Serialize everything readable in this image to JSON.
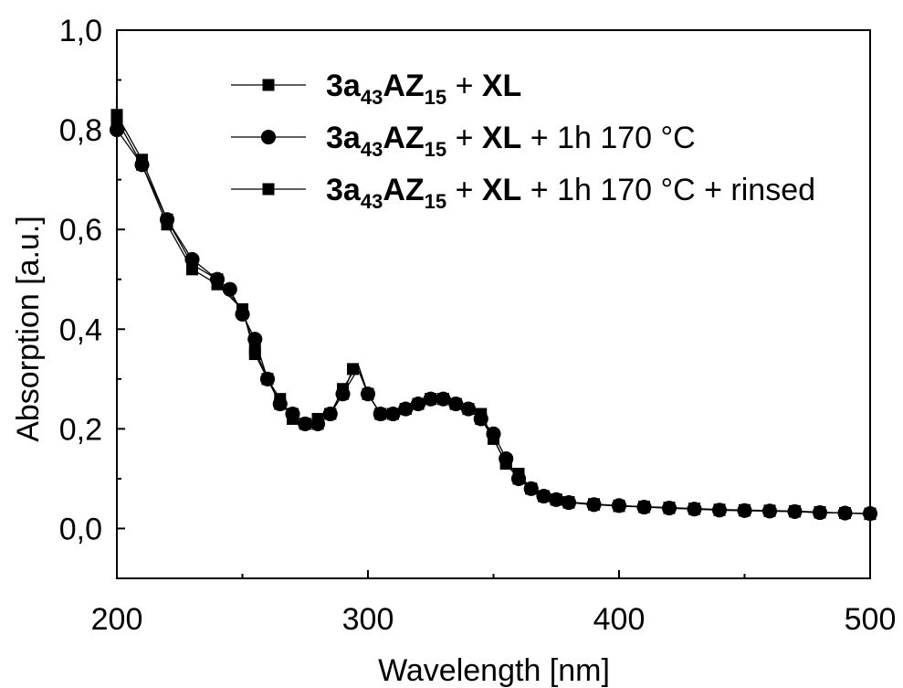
{
  "chart_data": {
    "type": "line",
    "xlabel": "Wavelength [nm]",
    "ylabel": "Absorption [a.u.]",
    "xlim": [
      200,
      500
    ],
    "ylim": [
      -0.1,
      1.0
    ],
    "x_ticks": [
      "200",
      "300",
      "400",
      "500"
    ],
    "y_ticks": [
      "0,0",
      "0,2",
      "0,4",
      "0,6",
      "0,8",
      "1,0"
    ],
    "grid": false,
    "legend_position": "top-right",
    "legend": [
      {
        "marker": "square",
        "parts": [
          {
            "t": "3a",
            "w": "bold"
          },
          {
            "t": "43",
            "w": "bold",
            "sub": true
          },
          {
            "t": "AZ",
            "w": "bold"
          },
          {
            "t": "15",
            "w": "bold",
            "sub": true
          },
          {
            "t": " + "
          },
          {
            "t": "XL",
            "w": "bold"
          }
        ]
      },
      {
        "marker": "circle",
        "parts": [
          {
            "t": "3a",
            "w": "bold"
          },
          {
            "t": "43",
            "w": "bold",
            "sub": true
          },
          {
            "t": "AZ",
            "w": "bold"
          },
          {
            "t": "15",
            "w": "bold",
            "sub": true
          },
          {
            "t": " + "
          },
          {
            "t": "XL",
            "w": "bold"
          },
          {
            "t": " + 1h 170 °C"
          }
        ]
      },
      {
        "marker": "square",
        "parts": [
          {
            "t": "3a",
            "w": "bold"
          },
          {
            "t": "43",
            "w": "bold",
            "sub": true
          },
          {
            "t": "AZ",
            "w": "bold"
          },
          {
            "t": "15",
            "w": "bold",
            "sub": true
          },
          {
            "t": " + "
          },
          {
            "t": "XL",
            "w": "bold"
          },
          {
            "t": " + 1h 170 °C + rinsed"
          }
        ]
      }
    ],
    "series": [
      {
        "marker": "square",
        "points": [
          [
            200,
            0.82
          ],
          [
            210,
            0.73
          ],
          [
            220,
            0.61
          ],
          [
            230,
            0.52
          ],
          [
            240,
            0.49
          ],
          [
            250,
            0.44
          ],
          [
            255,
            0.35
          ],
          [
            260,
            0.3
          ],
          [
            265,
            0.26
          ],
          [
            270,
            0.22
          ],
          [
            275,
            0.21
          ],
          [
            280,
            0.21
          ],
          [
            285,
            0.23
          ],
          [
            290,
            0.27
          ],
          [
            294,
            0.32
          ],
          [
            296,
            0.33
          ],
          [
            300,
            0.27
          ],
          [
            305,
            0.23
          ],
          [
            310,
            0.23
          ],
          [
            315,
            0.24
          ],
          [
            320,
            0.25
          ],
          [
            325,
            0.26
          ],
          [
            330,
            0.26
          ],
          [
            335,
            0.25
          ],
          [
            340,
            0.24
          ],
          [
            345,
            0.22
          ],
          [
            350,
            0.18
          ],
          [
            355,
            0.13
          ],
          [
            360,
            0.1
          ],
          [
            365,
            0.08
          ],
          [
            370,
            0.065
          ],
          [
            375,
            0.058
          ],
          [
            380,
            0.052
          ],
          [
            390,
            0.048
          ],
          [
            400,
            0.045
          ],
          [
            410,
            0.043
          ],
          [
            420,
            0.041
          ],
          [
            430,
            0.039
          ],
          [
            440,
            0.037
          ],
          [
            450,
            0.036
          ],
          [
            460,
            0.035
          ],
          [
            470,
            0.034
          ],
          [
            480,
            0.032
          ],
          [
            490,
            0.031
          ],
          [
            500,
            0.029
          ]
        ]
      },
      {
        "marker": "circle",
        "points": [
          [
            200,
            0.8
          ],
          [
            210,
            0.73
          ],
          [
            220,
            0.62
          ],
          [
            230,
            0.54
          ],
          [
            240,
            0.5
          ],
          [
            245,
            0.48
          ],
          [
            250,
            0.43
          ],
          [
            255,
            0.38
          ],
          [
            260,
            0.3
          ],
          [
            265,
            0.25
          ],
          [
            270,
            0.23
          ],
          [
            275,
            0.21
          ],
          [
            280,
            0.21
          ],
          [
            285,
            0.23
          ],
          [
            290,
            0.27
          ],
          [
            296,
            0.32
          ],
          [
            300,
            0.27
          ],
          [
            305,
            0.23
          ],
          [
            310,
            0.23
          ],
          [
            315,
            0.24
          ],
          [
            320,
            0.25
          ],
          [
            325,
            0.26
          ],
          [
            330,
            0.26
          ],
          [
            335,
            0.25
          ],
          [
            340,
            0.24
          ],
          [
            345,
            0.22
          ],
          [
            350,
            0.19
          ],
          [
            355,
            0.14
          ],
          [
            360,
            0.1
          ],
          [
            365,
            0.08
          ],
          [
            370,
            0.065
          ],
          [
            375,
            0.058
          ],
          [
            380,
            0.052
          ],
          [
            390,
            0.048
          ],
          [
            400,
            0.046
          ],
          [
            410,
            0.043
          ],
          [
            420,
            0.041
          ],
          [
            430,
            0.039
          ],
          [
            440,
            0.037
          ],
          [
            450,
            0.036
          ],
          [
            460,
            0.035
          ],
          [
            470,
            0.034
          ],
          [
            480,
            0.032
          ],
          [
            490,
            0.031
          ],
          [
            500,
            0.03
          ]
        ]
      },
      {
        "marker": "square",
        "points": [
          [
            200,
            0.83
          ],
          [
            210,
            0.74
          ],
          [
            220,
            0.62
          ],
          [
            230,
            0.53
          ],
          [
            240,
            0.5
          ],
          [
            250,
            0.44
          ],
          [
            255,
            0.36
          ],
          [
            260,
            0.3
          ],
          [
            265,
            0.25
          ],
          [
            270,
            0.23
          ],
          [
            275,
            0.21
          ],
          [
            280,
            0.22
          ],
          [
            285,
            0.23
          ],
          [
            290,
            0.28
          ],
          [
            296,
            0.33
          ],
          [
            300,
            0.27
          ],
          [
            305,
            0.23
          ],
          [
            310,
            0.23
          ],
          [
            315,
            0.24
          ],
          [
            320,
            0.25
          ],
          [
            325,
            0.26
          ],
          [
            330,
            0.26
          ],
          [
            335,
            0.25
          ],
          [
            340,
            0.24
          ],
          [
            345,
            0.23
          ],
          [
            350,
            0.18
          ],
          [
            355,
            0.13
          ],
          [
            360,
            0.11
          ],
          [
            365,
            0.08
          ],
          [
            370,
            0.065
          ],
          [
            375,
            0.058
          ],
          [
            380,
            0.053
          ],
          [
            390,
            0.049
          ],
          [
            400,
            0.046
          ],
          [
            410,
            0.044
          ],
          [
            420,
            0.042
          ],
          [
            430,
            0.04
          ],
          [
            440,
            0.038
          ],
          [
            450,
            0.037
          ],
          [
            460,
            0.036
          ],
          [
            470,
            0.035
          ],
          [
            480,
            0.033
          ],
          [
            490,
            0.031
          ],
          [
            500,
            0.03
          ]
        ]
      }
    ]
  }
}
